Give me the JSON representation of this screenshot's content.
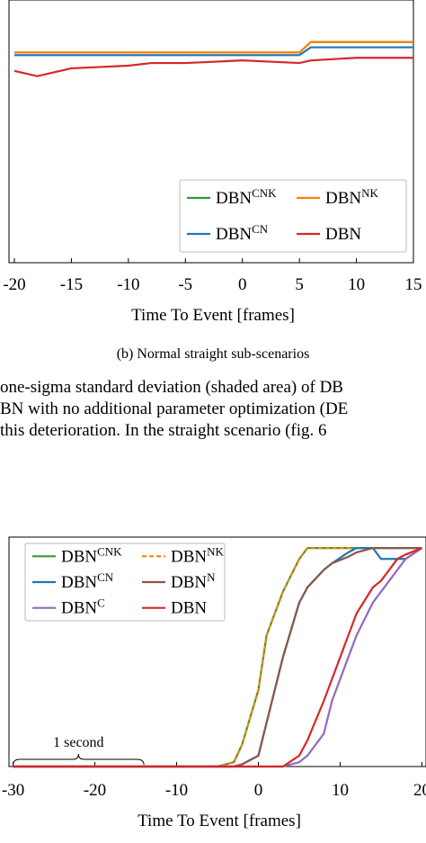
{
  "charts": [
    {
      "chart_data": {
        "type": "line",
        "xlabel": "Time To Event [frames]",
        "xlim": [
          -20,
          15
        ],
        "ylim": [
          0,
          1
        ],
        "xticks": [
          -20,
          -15,
          -10,
          -5,
          0,
          5,
          10,
          15
        ],
        "x": [
          -20,
          -18,
          -15,
          -10,
          -8,
          -5,
          0,
          5,
          6,
          10,
          15
        ],
        "series": [
          {
            "name": "DBN",
            "name_sup": "CNK",
            "color": "#2ca02c",
            "values": [
              0.8,
              0.8,
              0.8,
              0.8,
              0.8,
              0.8,
              0.8,
              0.8,
              0.84,
              0.84,
              0.84
            ]
          },
          {
            "name": "DBN",
            "name_sup": "NK",
            "color": "#ff7f0e",
            "values": [
              0.8,
              0.8,
              0.8,
              0.8,
              0.8,
              0.8,
              0.8,
              0.8,
              0.84,
              0.84,
              0.84
            ]
          },
          {
            "name": "DBN",
            "name_sup": "CN",
            "color": "#1f77b4",
            "values": [
              0.79,
              0.79,
              0.79,
              0.79,
              0.79,
              0.79,
              0.79,
              0.79,
              0.82,
              0.82,
              0.82
            ]
          },
          {
            "name": "DBN",
            "color": "#d62728",
            "values": [
              0.73,
              0.71,
              0.74,
              0.75,
              0.76,
              0.76,
              0.77,
              0.76,
              0.77,
              0.78,
              0.78
            ]
          }
        ],
        "caption": "(b) Normal straight sub-scenarios"
      }
    },
    {
      "chart_data": {
        "type": "line",
        "xlabel": "Time To Event [frames]",
        "xlim": [
          -30.5,
          20.5
        ],
        "ylim": [
          0,
          1.05
        ],
        "xticks": [
          -30,
          -20,
          -10,
          0,
          10,
          20
        ],
        "x": [
          -30,
          -5,
          -3,
          -2,
          0,
          1,
          3,
          5,
          6,
          8,
          9,
          11,
          12,
          14,
          15,
          17,
          18,
          20
        ],
        "annotation": "1 second",
        "series": [
          {
            "name": "DBN",
            "name_sup": "CNK",
            "color": "#2ca02c",
            "values": [
              0,
              0,
              0.02,
              0.1,
              0.35,
              0.6,
              0.8,
              0.95,
              1,
              1,
              1,
              1,
              1,
              1,
              1,
              1,
              1,
              1
            ]
          },
          {
            "name": "DBN",
            "name_sup": "NK",
            "color": "#ff7f0e",
            "dashed": true,
            "values": [
              0,
              0,
              0.02,
              0.1,
              0.35,
              0.6,
              0.8,
              0.95,
              1,
              1,
              1,
              1,
              1,
              1,
              1,
              1,
              1,
              1
            ]
          },
          {
            "name": "DBN",
            "name_sup": "CN",
            "color": "#1f77b4",
            "values": [
              0,
              0,
              0,
              0.01,
              0.05,
              0.2,
              0.5,
              0.75,
              0.82,
              0.9,
              0.93,
              0.98,
              1,
              1,
              0.95,
              0.95,
              0.95,
              1
            ]
          },
          {
            "name": "DBN",
            "name_sup": "N",
            "color": "#8c564b",
            "values": [
              0,
              0,
              0,
              0.01,
              0.05,
              0.2,
              0.5,
              0.75,
              0.82,
              0.9,
              0.93,
              0.96,
              0.98,
              1,
              1,
              1,
              1,
              1
            ]
          },
          {
            "name": "DBN",
            "name_sup": "C",
            "color": "#9467bd",
            "values": [
              0,
              0,
              0,
              0,
              0,
              0,
              0,
              0.02,
              0.05,
              0.15,
              0.3,
              0.5,
              0.6,
              0.75,
              0.8,
              0.9,
              0.95,
              1
            ]
          },
          {
            "name": "DBN",
            "color": "#d62728",
            "values": [
              0,
              0,
              0,
              0,
              0,
              0,
              0,
              0.05,
              0.12,
              0.3,
              0.4,
              0.6,
              0.7,
              0.82,
              0.85,
              0.95,
              0.97,
              1
            ]
          }
        ]
      }
    }
  ],
  "text_lines": [
    "one-sigma standard deviation (shaded area) of DB",
    "BN with no additional parameter optimization (DE",
    "this deterioration. In the straight scenario (fig. 6"
  ]
}
